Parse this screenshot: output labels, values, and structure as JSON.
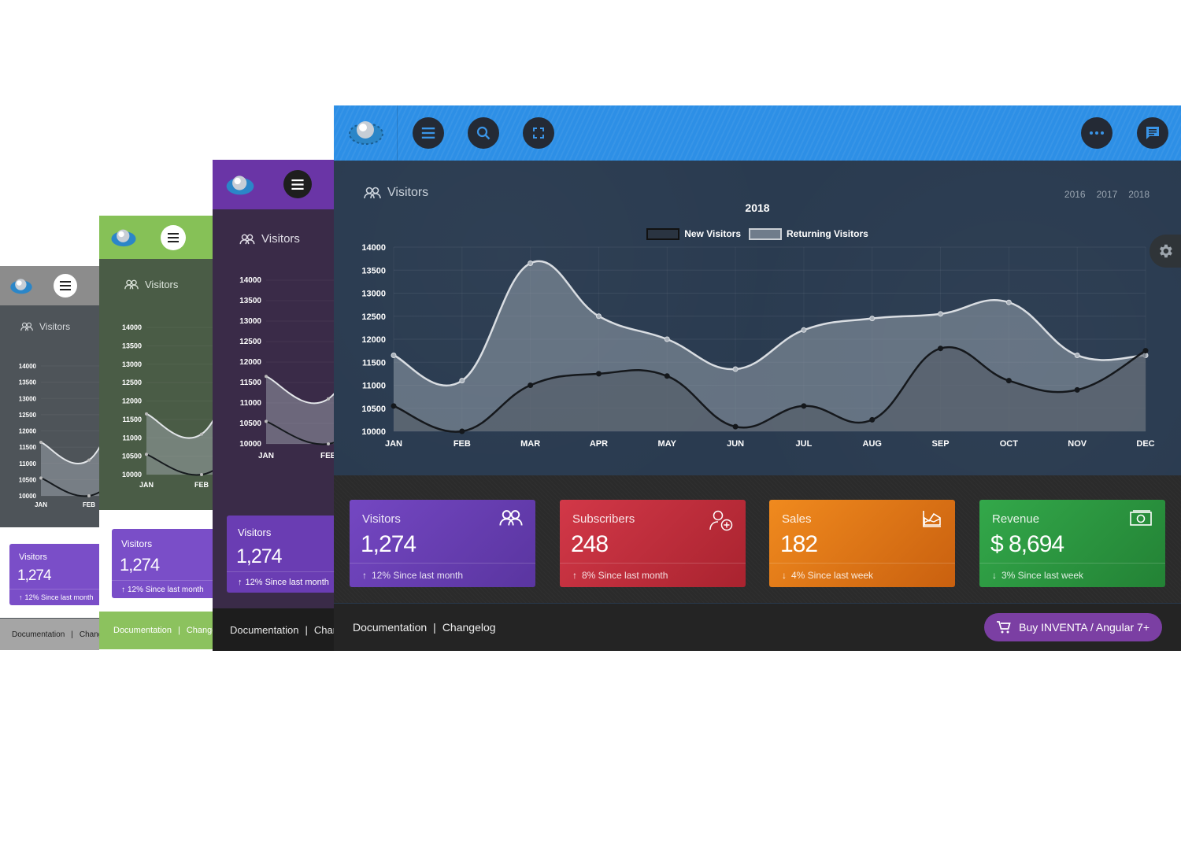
{
  "gray_pane": {
    "chart_title": "Visitors",
    "y_ticks": [
      "14000",
      "13500",
      "13000",
      "12500",
      "12000",
      "11500",
      "11000",
      "10500",
      "10000"
    ],
    "x_ticks": [
      "JAN",
      "FEB"
    ],
    "card": {
      "title": "Visitors",
      "value": "1,274",
      "footer": "12% Since last month"
    },
    "footer": {
      "doc": "Documentation",
      "sep": "|",
      "changelog": "Change"
    }
  },
  "green_pane": {
    "chart_title": "Visitors",
    "y_ticks": [
      "14000",
      "13500",
      "13000",
      "12500",
      "12000",
      "11500",
      "11000",
      "10500",
      "10000"
    ],
    "x_ticks": [
      "JAN",
      "FEB"
    ],
    "card": {
      "title": "Visitors",
      "value": "1,274",
      "footer": "12% Since last month"
    },
    "footer": {
      "doc": "Documentation",
      "sep": "|",
      "changelog": "Change"
    }
  },
  "purple_pane": {
    "chart_title": "Visitors",
    "y_ticks": [
      "14000",
      "13500",
      "13000",
      "12500",
      "12000",
      "11500",
      "11000",
      "10500",
      "10000"
    ],
    "x_ticks": [
      "JAN",
      "FEB"
    ],
    "card": {
      "title": "Visitors",
      "value": "1,274",
      "footer": "12% Since last month"
    },
    "footer": {
      "doc": "Documentation",
      "sep": "|",
      "changelog": "Chang"
    }
  },
  "main_pane": {
    "header_icons": [
      "menu-icon",
      "search-icon",
      "fullscreen-icon",
      "more-icon",
      "chat-icon"
    ],
    "chart_header": "Visitors",
    "years": [
      "2016",
      "2017",
      "2018"
    ],
    "cards": [
      {
        "title": "Visitors",
        "value": "1,274",
        "trend": "up",
        "footer": "12% Since last month",
        "icon": "users-icon",
        "color": "#6a3db3"
      },
      {
        "title": "Subscribers",
        "value": "248",
        "trend": "up",
        "footer": "8% Since last month",
        "icon": "add-user-icon",
        "color": "#c42e3f"
      },
      {
        "title": "Sales",
        "value": "182",
        "trend": "down",
        "footer": "4% Since last week",
        "icon": "area-chart-icon",
        "color": "#e2761a"
      },
      {
        "title": "Revenue",
        "value": "$ 8,694",
        "trend": "down",
        "footer": "3% Since last week",
        "icon": "money-icon",
        "color": "#2c9640"
      }
    ],
    "footer": {
      "doc": "Documentation",
      "sep": "|",
      "changelog": "Changelog"
    },
    "buy_button": "Buy INVENTA / Angular 7+"
  },
  "chart_data": [
    {
      "type": "area",
      "title": "2018",
      "categories": [
        "JAN",
        "FEB",
        "MAR",
        "APR",
        "MAY",
        "JUN",
        "JUL",
        "AUG",
        "SEP",
        "OCT",
        "NOV",
        "DEC"
      ],
      "series": [
        {
          "name": "New Visitors",
          "color": "#1b1f24",
          "values": [
            10550,
            10000,
            11000,
            11250,
            11200,
            10100,
            10550,
            10250,
            11800,
            11100,
            10900,
            11750
          ]
        },
        {
          "name": "Returning Visitors",
          "color": "#d6dbe0",
          "values": [
            11650,
            11100,
            13650,
            12500,
            12000,
            11350,
            12200,
            12450,
            12550,
            12800,
            11650,
            11650
          ]
        }
      ],
      "ylim": [
        10000,
        14000
      ],
      "y_ticks": [
        10000,
        10500,
        11000,
        11500,
        12000,
        12500,
        13000,
        13500,
        14000
      ],
      "legend": "top-center",
      "grid": true
    }
  ]
}
